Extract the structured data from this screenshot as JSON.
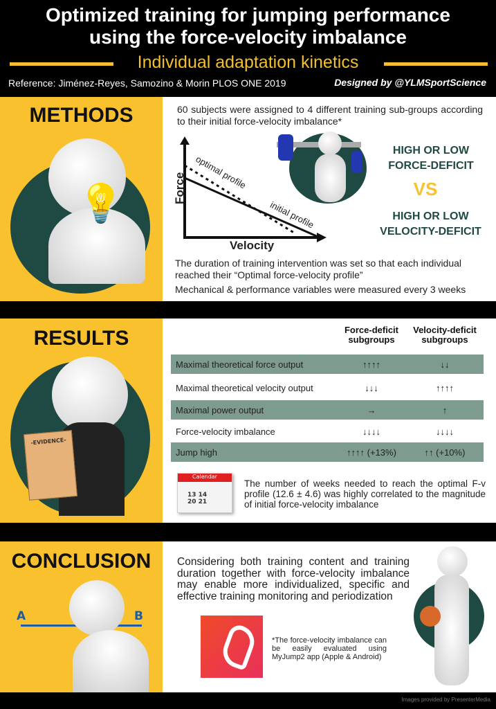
{
  "header": {
    "title_line1": "Optimized training for jumping performance",
    "title_line2": "using the force-velocity imbalance",
    "subtitle": "Individual adaptation kinetics",
    "reference": "Reference: Jiménez-Reyes, Samozino & Morin PLOS ONE 2019",
    "designed_by": "Designed by @YLMSportScience"
  },
  "colors": {
    "accent_yellow": "#F8C12D",
    "dark_green": "#1F4A44",
    "table_green": "#7D9B8F"
  },
  "methods": {
    "title": "METHODS",
    "intro": "60 subjects were assigned to 4 different training sub-groups according to their initial force-velocity imbalance*",
    "graph": {
      "y_label": "Force",
      "x_label": "Velocity",
      "optimal_label": "optimal profile",
      "initial_label": "initial profile"
    },
    "force_deficit": "HIGH OR LOW FORCE-DEFICIT",
    "vs": "VS",
    "velocity_deficit": "HIGH OR LOW VELOCITY-DEFICIT",
    "duration_text": "The duration of training intervention was set so that each individual reached their “Optimal force-velocity profile”",
    "measured_text": "Mechanical & performance variables were measured every 3 weeks"
  },
  "results": {
    "title": "RESULTS",
    "evidence_label": "-EVIDENCE-",
    "columns": [
      "Force-deficit subgroups",
      "Velocity-deficit subgroups"
    ],
    "rows": [
      {
        "label": "Maximal theoretical force output",
        "force": "↑↑↑↑",
        "velocity": "↓↓"
      },
      {
        "label": "Maximal theoretical velocity output",
        "force": "↓↓↓",
        "velocity": "↑↑↑↑"
      },
      {
        "label": "Maximal power output",
        "force": "→",
        "velocity": "↑"
      },
      {
        "label": "Force-velocity imbalance",
        "force": "↓↓↓↓",
        "velocity": "↓↓↓↓"
      },
      {
        "label": "Jump high",
        "force": "↑↑↑↑ (+13%)",
        "velocity": "↑↑ (+10%)"
      }
    ],
    "calendar_label": "Calendar",
    "calendar_days": "13 14 20 21",
    "weeks_text": "The number of weeks needed to reach the optimal F-v profile (12.6 ± 4.6) was highly correlated to the magnitude of initial force-velocity imbalance"
  },
  "conclusion": {
    "title": "CONCLUSION",
    "point_a": "A",
    "point_b": "B",
    "text": "Considering both training content and training duration together with force-velocity imbalance may enable more individualized, specific and effective training monitoring and periodization",
    "app_note": "*The force-velocity imbalance can be easily evaluated using MyJump2 app (Apple & Android)"
  },
  "footer": {
    "credit": "Images provided by PresenterMedia"
  }
}
